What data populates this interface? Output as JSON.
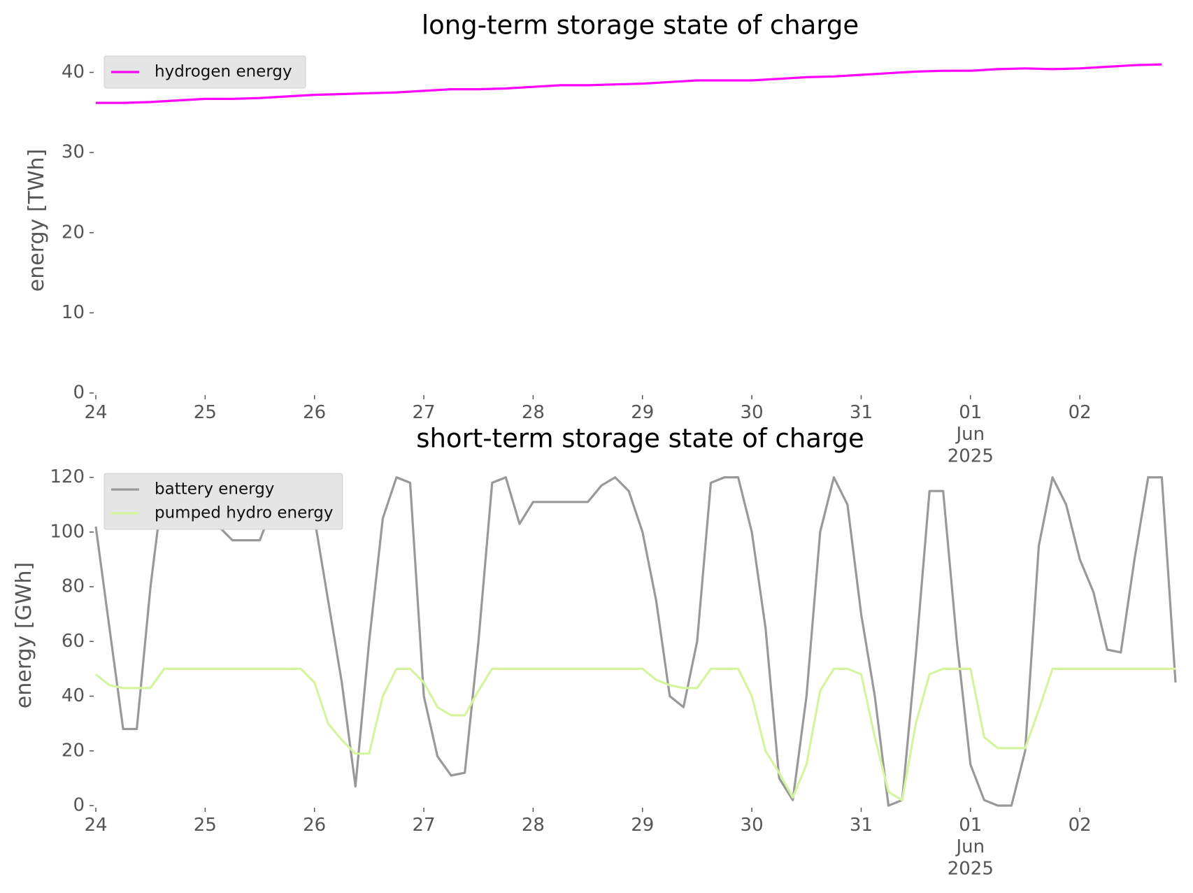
{
  "chart_data": [
    {
      "type": "line",
      "title": "long-term storage state of charge",
      "ylabel": "energy [TWh]",
      "x": [
        "2025-05-24T00:00",
        "2025-05-24T06:00",
        "2025-05-24T12:00",
        "2025-05-24T18:00",
        "2025-05-25T00:00",
        "2025-05-25T06:00",
        "2025-05-25T12:00",
        "2025-05-25T18:00",
        "2025-05-26T00:00",
        "2025-05-26T06:00",
        "2025-05-26T12:00",
        "2025-05-26T18:00",
        "2025-05-27T00:00",
        "2025-05-27T06:00",
        "2025-05-27T12:00",
        "2025-05-27T18:00",
        "2025-05-28T00:00",
        "2025-05-28T06:00",
        "2025-05-28T12:00",
        "2025-05-28T18:00",
        "2025-05-29T00:00",
        "2025-05-29T06:00",
        "2025-05-29T12:00",
        "2025-05-29T18:00",
        "2025-05-30T00:00",
        "2025-05-30T06:00",
        "2025-05-30T12:00",
        "2025-05-30T18:00",
        "2025-05-31T00:00",
        "2025-05-31T06:00",
        "2025-05-31T12:00",
        "2025-05-31T18:00",
        "2025-06-01T00:00",
        "2025-06-01T06:00",
        "2025-06-01T12:00",
        "2025-06-01T18:00",
        "2025-06-02T00:00",
        "2025-06-02T06:00",
        "2025-06-02T12:00",
        "2025-06-02T18:00"
      ],
      "series": [
        {
          "name": "hydrogen energy",
          "color": "#ff00ff",
          "values": [
            36.2,
            36.2,
            36.3,
            36.5,
            36.7,
            36.7,
            36.8,
            37.0,
            37.2,
            37.3,
            37.4,
            37.5,
            37.7,
            37.9,
            37.9,
            38.0,
            38.2,
            38.4,
            38.4,
            38.5,
            38.6,
            38.8,
            39.0,
            39.0,
            39.0,
            39.2,
            39.4,
            39.5,
            39.7,
            39.9,
            40.1,
            40.2,
            40.2,
            40.4,
            40.5,
            40.4,
            40.5,
            40.7,
            40.9,
            41.0
          ]
        }
      ],
      "xlim": [
        "2025-05-24T00:00",
        "2025-06-02T23:00"
      ],
      "xticks": [
        {
          "value": "2025-05-24T00:00",
          "label": "24"
        },
        {
          "value": "2025-05-25T00:00",
          "label": "25"
        },
        {
          "value": "2025-05-26T00:00",
          "label": "26"
        },
        {
          "value": "2025-05-27T00:00",
          "label": "27"
        },
        {
          "value": "2025-05-28T00:00",
          "label": "28"
        },
        {
          "value": "2025-05-29T00:00",
          "label": "29"
        },
        {
          "value": "2025-05-30T00:00",
          "label": "30"
        },
        {
          "value": "2025-05-31T00:00",
          "label": "31"
        },
        {
          "value": "2025-06-01T00:00",
          "label": "01\nJun\n2025"
        },
        {
          "value": "2025-06-02T00:00",
          "label": "02"
        }
      ],
      "ylim": [
        0,
        43.1
      ],
      "yticks": [
        0,
        10,
        20,
        30,
        40
      ],
      "grid": false,
      "legend": "upper left"
    },
    {
      "type": "line",
      "title": "short-term storage state of charge",
      "ylabel": "energy [GWh]",
      "x": [
        "2025-05-24T00:00",
        "2025-05-24T03:00",
        "2025-05-24T06:00",
        "2025-05-24T09:00",
        "2025-05-24T12:00",
        "2025-05-24T15:00",
        "2025-05-24T18:00",
        "2025-05-24T21:00",
        "2025-05-25T00:00",
        "2025-05-25T03:00",
        "2025-05-25T06:00",
        "2025-05-25T09:00",
        "2025-05-25T12:00",
        "2025-05-25T15:00",
        "2025-05-25T18:00",
        "2025-05-25T21:00",
        "2025-05-26T00:00",
        "2025-05-26T03:00",
        "2025-05-26T06:00",
        "2025-05-26T09:00",
        "2025-05-26T12:00",
        "2025-05-26T15:00",
        "2025-05-26T18:00",
        "2025-05-26T21:00",
        "2025-05-27T00:00",
        "2025-05-27T03:00",
        "2025-05-27T06:00",
        "2025-05-27T09:00",
        "2025-05-27T12:00",
        "2025-05-27T15:00",
        "2025-05-27T18:00",
        "2025-05-27T21:00",
        "2025-05-28T00:00",
        "2025-05-28T03:00",
        "2025-05-28T06:00",
        "2025-05-28T09:00",
        "2025-05-28T12:00",
        "2025-05-28T15:00",
        "2025-05-28T18:00",
        "2025-05-28T21:00",
        "2025-05-29T00:00",
        "2025-05-29T03:00",
        "2025-05-29T06:00",
        "2025-05-29T09:00",
        "2025-05-29T12:00",
        "2025-05-29T15:00",
        "2025-05-29T18:00",
        "2025-05-29T21:00",
        "2025-05-30T00:00",
        "2025-05-30T03:00",
        "2025-05-30T06:00",
        "2025-05-30T09:00",
        "2025-05-30T12:00",
        "2025-05-30T15:00",
        "2025-05-30T18:00",
        "2025-05-30T21:00",
        "2025-05-31T00:00",
        "2025-05-31T03:00",
        "2025-05-31T06:00",
        "2025-05-31T09:00",
        "2025-05-31T12:00",
        "2025-05-31T15:00",
        "2025-05-31T18:00",
        "2025-05-31T21:00",
        "2025-06-01T00:00",
        "2025-06-01T03:00",
        "2025-06-01T06:00",
        "2025-06-01T09:00",
        "2025-06-01T12:00",
        "2025-06-01T15:00",
        "2025-06-01T18:00",
        "2025-06-01T21:00",
        "2025-06-02T00:00",
        "2025-06-02T03:00",
        "2025-06-02T06:00",
        "2025-06-02T09:00",
        "2025-06-02T12:00",
        "2025-06-02T15:00",
        "2025-06-02T18:00",
        "2025-06-02T21:00"
      ],
      "series": [
        {
          "name": "battery energy",
          "color": "#999999",
          "values": [
            102,
            65,
            28,
            28,
            80,
            120,
            120,
            120,
            112,
            102,
            97,
            97,
            97,
            110,
            120,
            120,
            105,
            75,
            45,
            7,
            60,
            105,
            120,
            118,
            40,
            18,
            11,
            12,
            60,
            118,
            120,
            103,
            111,
            111,
            111,
            111,
            111,
            117,
            120,
            115,
            100,
            75,
            40,
            36,
            60,
            118,
            120,
            120,
            100,
            65,
            10,
            2,
            40,
            100,
            120,
            110,
            70,
            40,
            0,
            2,
            55,
            115,
            115,
            60,
            15,
            2,
            0,
            0,
            20,
            95,
            120,
            110,
            90,
            78,
            57,
            56,
            90,
            120,
            120,
            45
          ]
        },
        {
          "name": "pumped hydro energy",
          "color": "#d4f59e",
          "values": [
            48,
            44,
            43,
            43,
            43,
            50,
            50,
            50,
            50,
            50,
            50,
            50,
            50,
            50,
            50,
            50,
            45,
            30,
            24,
            19,
            19,
            40,
            50,
            50,
            45,
            36,
            33,
            33,
            42,
            50,
            50,
            50,
            50,
            50,
            50,
            50,
            50,
            50,
            50,
            50,
            50,
            46,
            44,
            43,
            43,
            50,
            50,
            50,
            40,
            20,
            12,
            3,
            15,
            42,
            50,
            50,
            48,
            25,
            5,
            2,
            30,
            48,
            50,
            50,
            50,
            25,
            21,
            21,
            21,
            35,
            50,
            50,
            50,
            50,
            50,
            50,
            50,
            50,
            50,
            50
          ]
        }
      ],
      "xlim": [
        "2025-05-24T00:00",
        "2025-06-02T23:00"
      ],
      "xticks": [
        {
          "value": "2025-05-24T00:00",
          "label": "24"
        },
        {
          "value": "2025-05-25T00:00",
          "label": "25"
        },
        {
          "value": "2025-05-26T00:00",
          "label": "26"
        },
        {
          "value": "2025-05-27T00:00",
          "label": "27"
        },
        {
          "value": "2025-05-28T00:00",
          "label": "28"
        },
        {
          "value": "2025-05-29T00:00",
          "label": "29"
        },
        {
          "value": "2025-05-30T00:00",
          "label": "30"
        },
        {
          "value": "2025-05-31T00:00",
          "label": "31"
        },
        {
          "value": "2025-06-01T00:00",
          "label": "01\nJun\n2025"
        },
        {
          "value": "2025-06-02T00:00",
          "label": "02"
        }
      ],
      "ylim": [
        0,
        124.5
      ],
      "yticks": [
        0,
        20,
        40,
        60,
        80,
        100,
        120
      ],
      "grid": false,
      "legend": "upper left"
    }
  ]
}
